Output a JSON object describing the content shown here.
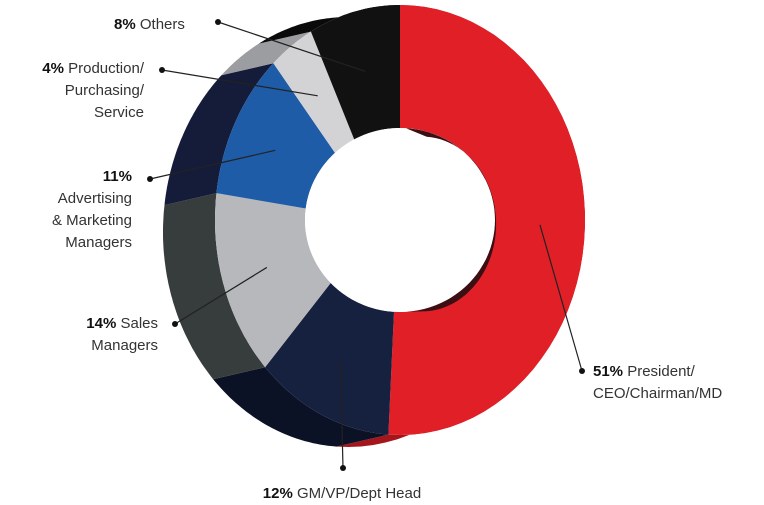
{
  "chart_data": {
    "type": "pie",
    "style": "3d-donut",
    "slices": [
      {
        "label": "President/ CEO/Chairman/MD",
        "pct_label": "51%",
        "value": 51,
        "color": "#e11f27",
        "side_color": "#a5151c"
      },
      {
        "label": "GM/VP/Dept Head",
        "pct_label": "12%",
        "value": 12,
        "color": "#16203f",
        "side_color": "#0c1226"
      },
      {
        "label": "Sales Managers",
        "pct_label": "14%",
        "value": 14,
        "color": "#b7b8bc",
        "side_color": "#373c3d"
      },
      {
        "label": "Advertising & Marketing Managers",
        "pct_label": "11%",
        "value": 11,
        "color": "#1f5ca8",
        "side_color": "#141c3a"
      },
      {
        "label": "Production/ Purchasing/ Service",
        "pct_label": "4%",
        "value": 4,
        "color": "#d3d3d5",
        "side_color": "#9c9da1"
      },
      {
        "label": "Others",
        "pct_label": "8%",
        "value": 8,
        "color": "#111111",
        "side_color": "#0a0a0a"
      }
    ]
  },
  "labels": {
    "others": {
      "pct": "8%",
      "lines": [
        "Others"
      ]
    },
    "production": {
      "pct": "4%",
      "lines": [
        "Production/",
        "Purchasing/",
        "Service"
      ]
    },
    "advertising": {
      "pct": "11%",
      "lines": [
        "Advertising",
        "& Marketing",
        "Managers"
      ]
    },
    "sales": {
      "pct": "14%",
      "lines": [
        "Sales",
        "Managers"
      ]
    },
    "president": {
      "pct": "51%",
      "lines": [
        "President/",
        "CEO/Chairman/MD"
      ]
    },
    "gm": {
      "pct": "12%",
      "lines": [
        "GM/VP/Dept Head"
      ]
    }
  }
}
